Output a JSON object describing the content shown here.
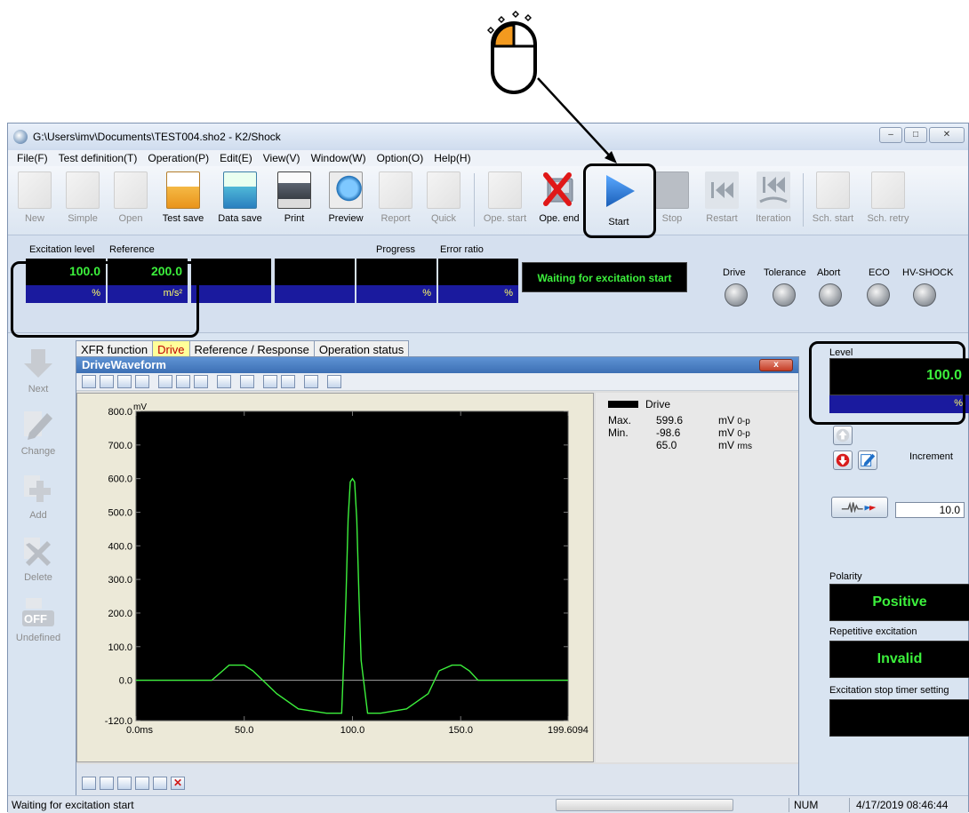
{
  "window": {
    "title": "G:\\Users\\imv\\Documents\\TEST004.sho2 - K2/Shock",
    "controls": [
      "minimize-icon",
      "maximize-icon",
      "close-icon"
    ]
  },
  "menu": [
    "File(F)",
    "Test definition(T)",
    "Operation(P)",
    "Edit(E)",
    "View(V)",
    "Window(W)",
    "Option(O)",
    "Help(H)"
  ],
  "toolbar": {
    "new": "New",
    "simple": "Simple",
    "open": "Open",
    "test_save": "Test save",
    "data_save": "Data save",
    "print": "Print",
    "preview": "Preview",
    "report": "Report",
    "quick": "Quick",
    "ope_start": "Ope. start",
    "ope_end": "Ope. end",
    "start": "Start",
    "stop": "Stop",
    "restart": "Restart",
    "iteration": "Iteration",
    "sch_start": "Sch. start",
    "sch_retry": "Sch. retry"
  },
  "status_panel": {
    "excitation_level": {
      "label": "Excitation level",
      "value": "100.0",
      "unit": "%"
    },
    "reference": {
      "label": "Reference",
      "value": "200.0",
      "unit": "m/s²"
    },
    "progress": {
      "label": "Progress",
      "unit": "%"
    },
    "error_ratio": {
      "label": "Error ratio",
      "unit": "%"
    },
    "status_message": "Waiting for excitation start",
    "lamps": [
      "Drive",
      "Tolerance",
      "Abort",
      "ECO",
      "HV-SHOCK"
    ]
  },
  "side_panel": [
    "Next",
    "Change",
    "Add",
    "Delete",
    "Undefined"
  ],
  "side_off_badge": "OFF",
  "tabs": [
    "XFR function",
    "Drive",
    "Reference / Response",
    "Operation status"
  ],
  "drive_window": {
    "title": "DriveWaveform",
    "close_label": "x",
    "legend": {
      "name": "Drive",
      "max_label": "Max.",
      "max_value": "599.6",
      "max_unit": "mV",
      "min_label": "Min.",
      "min_value": "-98.6",
      "min_unit": "mV",
      "rms_value": "65.0",
      "rms_unit": "mV",
      "peak_sub": "0-p",
      "rms_sub": "rms"
    }
  },
  "chart_data": {
    "type": "line",
    "y_unit": "mV",
    "y_ticks": [
      "800.0",
      "700.0",
      "600.0",
      "500.0",
      "400.0",
      "300.0",
      "200.0",
      "100.0",
      "0.0",
      "-120.0"
    ],
    "x_ticks": [
      "0.0ms",
      "50.0",
      "100.0",
      "150.0",
      "199.6094"
    ],
    "ylim": [
      -120,
      800
    ],
    "xlim": [
      0,
      199.6094
    ],
    "grid": false,
    "series": [
      {
        "name": "Drive",
        "color": "#3cf03c",
        "x": [
          0,
          35,
          40,
          43,
          46,
          50,
          54,
          65,
          75,
          88,
          95,
          96,
          97,
          98,
          99,
          100,
          101,
          102,
          103,
          104,
          107,
          113,
          125,
          135,
          140,
          146,
          150,
          154,
          158,
          165,
          199.6094
        ],
        "y": [
          0,
          0,
          28,
          45,
          45,
          45,
          28,
          -40,
          -85,
          -98,
          -98,
          60,
          250,
          480,
          590,
          599.6,
          590,
          480,
          250,
          60,
          -98,
          -98,
          -85,
          -40,
          28,
          45,
          45,
          28,
          0,
          0,
          0
        ]
      }
    ]
  },
  "right_panel": {
    "level_label": "Level",
    "level_value": "100.0",
    "level_unit": "%",
    "increment_label": "Increment",
    "increment_value": "10.0",
    "polarity_label": "Polarity",
    "polarity_value": "Positive",
    "repetitive_label": "Repetitive excitation",
    "repetitive_value": "Invalid",
    "timer_label": "Excitation stop timer setting"
  },
  "status_bar": {
    "message": "Waiting for excitation start",
    "num": "NUM",
    "datetime": "4/17/2019  08:46:44"
  },
  "colors": {
    "accent": "#1f6fc8",
    "mouse_button": "#f39a1f",
    "display_green": "#3cf03c",
    "unit_bar": "#1a1a9e"
  }
}
